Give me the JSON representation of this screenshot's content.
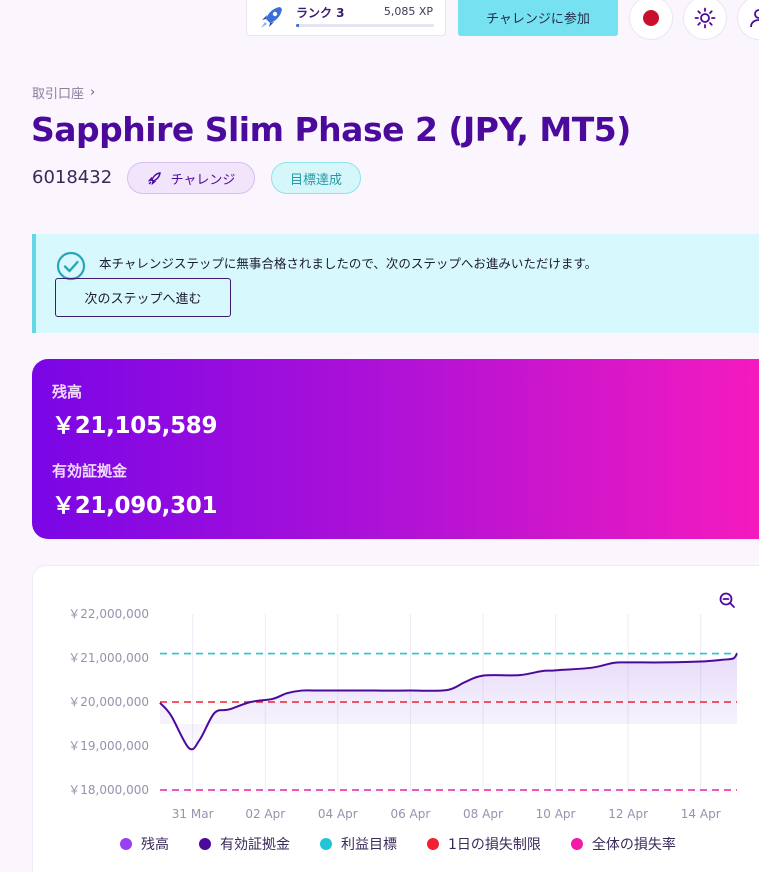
{
  "topbar": {
    "rank_label": "ランク 3",
    "rank_xp": "5,085 XP",
    "rank_progress": 0.02,
    "join_label": "チャレンジに参加"
  },
  "header": {
    "breadcrumb": "取引口座",
    "title": "Sapphire Slim Phase 2 (JPY, MT5)",
    "account_id": "6018432",
    "badge_challenge": "チャレンジ",
    "badge_goal": "目標達成"
  },
  "alert": {
    "message": "本チャレンジステップに無事合格されましたので、次のステップへお進みいただけます。",
    "next_button": "次のステップへ進む"
  },
  "balance": {
    "balance_label": "残高",
    "balance_value": "￥21,105,589",
    "equity_label": "有効証拠金",
    "equity_value": "￥21,090,301"
  },
  "chart_data": {
    "type": "line",
    "y_ticks": [
      "￥22,000,000",
      "￥21,000,000",
      "￥20,000,000",
      "￥19,000,000",
      "￥18,000,000"
    ],
    "x_ticks": [
      "31 Mar",
      "02 Apr",
      "04 Apr",
      "06 Apr",
      "08 Apr",
      "10 Apr",
      "12 Apr",
      "14 Apr"
    ],
    "ylim": [
      18000000,
      22000000
    ],
    "xlim": [
      30.1,
      46.0
    ],
    "x_unit": "day (30 = 30 Mar, 32 = 01 Apr)",
    "series": [
      {
        "name": "有効証拠金",
        "color": "#4b0a9c",
        "x": [
          30.1,
          30.4,
          30.9,
          31.2,
          31.6,
          32.0,
          32.6,
          33.2,
          33.6,
          34.0,
          34.5,
          35.0,
          36.0,
          37.0,
          38.0,
          38.5,
          39.0,
          40.0,
          40.6,
          41.0,
          42.0,
          42.6,
          43.0,
          44.0,
          45.0,
          45.6,
          45.9,
          46.0
        ],
        "y": [
          19980000,
          19700000,
          18950000,
          19150000,
          19750000,
          19830000,
          20000000,
          20070000,
          20200000,
          20260000,
          20260000,
          20260000,
          20260000,
          20260000,
          20270000,
          20450000,
          20600000,
          20610000,
          20700000,
          20720000,
          20780000,
          20890000,
          20900000,
          20900000,
          20920000,
          20960000,
          20990000,
          21105589
        ]
      },
      {
        "name": "利益目標",
        "color": "#22c5d3",
        "value": 21100000
      },
      {
        "name": "1日の損失制限",
        "color": "#f02030",
        "value": 20000000
      },
      {
        "name": "全体の損失率",
        "color": "#f21ba8",
        "value": 18000000
      }
    ],
    "legend": [
      {
        "name": "残高",
        "color": "#9b3ef0"
      },
      {
        "name": "有効証拠金",
        "color": "#4b0a9c"
      },
      {
        "name": "利益目標",
        "color": "#22c5d3"
      },
      {
        "name": "1日の損失制限",
        "color": "#f02030"
      },
      {
        "name": "全体の損失率",
        "color": "#f21ba8"
      }
    ]
  },
  "colors": {
    "brand": "#4b0a9c",
    "accent_cyan": "#76e1f0",
    "gradient_start": "#7a06e6",
    "gradient_end": "#f81bbd"
  }
}
